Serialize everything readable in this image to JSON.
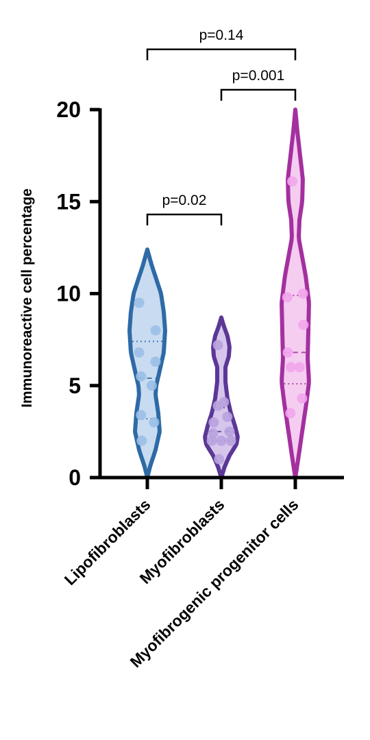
{
  "chart_data": {
    "type": "violin",
    "ylabel": "Immunoreactive cell percentage",
    "ylim": [
      0,
      20
    ],
    "yticks": [
      "0",
      "5",
      "10",
      "15",
      "20"
    ],
    "grid": false,
    "categories": [
      "Lipofibroblasts",
      "Myofibroblasts",
      "Myofibrogenic progenitor cells"
    ],
    "series": [
      {
        "category": "Lipofibroblasts",
        "color": "#2e6aa6",
        "fill": "#c8dbf1",
        "point_color": "#9bbfe7",
        "points": [
          9.5,
          8.0,
          6.8,
          6.3,
          5.5,
          5.0,
          3.4,
          3.0,
          2.0
        ],
        "median": 5.4,
        "q1": 3.2,
        "q3": 7.4,
        "range": [
          0.0,
          12.4
        ]
      },
      {
        "category": "Myofibroblasts",
        "color": "#5b3796",
        "fill": "#d6c6ec",
        "point_color": "#b9a2de",
        "points": [
          7.2,
          4.1,
          3.9,
          3.3,
          3.0,
          2.5,
          2.4,
          2.0,
          2.0,
          2.0,
          1.0
        ],
        "median": 2.5,
        "q1": 2.0,
        "q3": 3.8,
        "range": [
          0.0,
          8.7
        ]
      },
      {
        "category": "Myofibrogenic progenitor cells",
        "color": "#a4309f",
        "fill": "#f4cdf0",
        "point_color": "#f2a6ec",
        "points": [
          16.1,
          10.0,
          9.8,
          8.3,
          6.8,
          6.0,
          6.0,
          4.3,
          3.5
        ],
        "median": 6.8,
        "q1": 5.1,
        "q3": 9.9,
        "range": [
          0.0,
          20.0
        ]
      }
    ],
    "comparisons": [
      {
        "from": 0,
        "to": 1,
        "label": "p=0.02"
      },
      {
        "from": 1,
        "to": 2,
        "label": "p=0.001"
      },
      {
        "from": 0,
        "to": 2,
        "label": "p=0.14"
      }
    ]
  }
}
